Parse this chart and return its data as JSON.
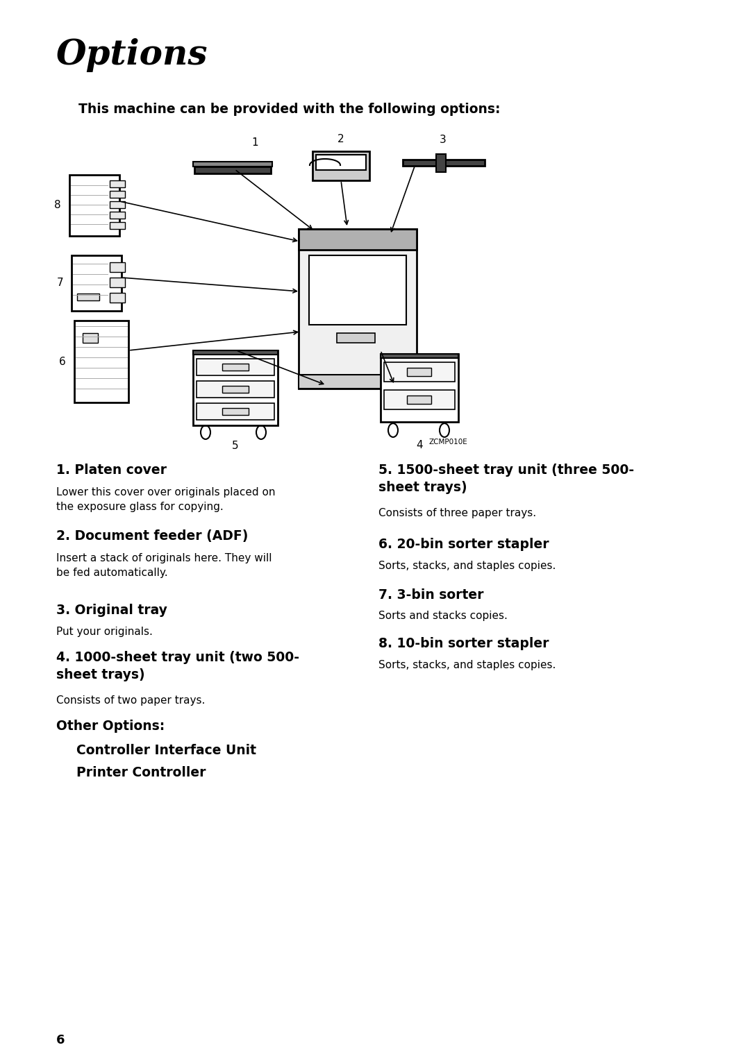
{
  "title": "Options",
  "subtitle": "This machine can be provided with the following options:",
  "diagram_label": "ZCMP010E",
  "page_number": "6",
  "bg_color": "#ffffff",
  "text_color": "#000000",
  "items": [
    {
      "number": "1",
      "heading": "1. Platen cover",
      "description": "Lower this cover over originals placed on\nthe exposure glass for copying."
    },
    {
      "number": "2",
      "heading": "2. Document feeder (ADF)",
      "description": "Insert a stack of originals here. They will\nbe fed automatically."
    },
    {
      "number": "3",
      "heading": "3. Original tray",
      "description": "Put your originals."
    },
    {
      "number": "4",
      "heading": "4. 1000-sheet tray unit (two 500-\nsheet trays)",
      "description": "Consists of two paper trays."
    },
    {
      "number": "5",
      "heading": "5. 1500-sheet tray unit (three 500-\nsheet trays)",
      "description": "Consists of three paper trays."
    },
    {
      "number": "6",
      "heading": "6. 20-bin sorter stapler",
      "description": "Sorts, stacks, and staples copies."
    },
    {
      "number": "7",
      "heading": "7. 3-bin sorter",
      "description": "Sorts and stacks copies."
    },
    {
      "number": "8",
      "heading": "8. 10-bin sorter stapler",
      "description": "Sorts, stacks, and staples copies."
    }
  ],
  "other_options_label": "Other Options:",
  "other_options_items": [
    "Controller Interface Unit",
    "Printer Controller"
  ]
}
